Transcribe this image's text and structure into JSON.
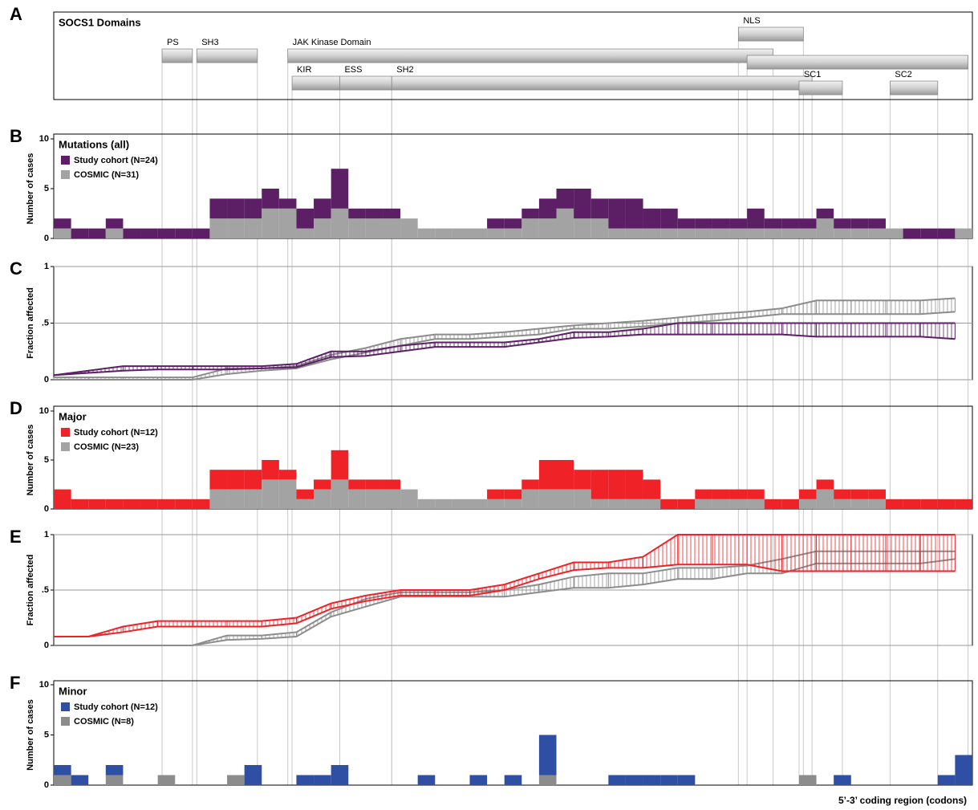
{
  "chart_data": [
    {
      "type": "domains",
      "panel": "A",
      "title": "SOCS1 Domains",
      "xlim": [
        0,
        212
      ],
      "domains": [
        {
          "label": "PS",
          "start": 25,
          "end": 32
        },
        {
          "label": "SH3",
          "start": 33,
          "end": 47
        },
        {
          "label": "JAK Kinase Domain",
          "start": 54,
          "end": 166
        },
        {
          "label": "NLS",
          "start": 158,
          "end": 173
        },
        {
          "label": null,
          "start": 160,
          "end": 211
        },
        {
          "label": "KIR",
          "start": 55,
          "end": 66
        },
        {
          "label": "ESS",
          "start": 66,
          "end": 78
        },
        {
          "label": "SH2",
          "start": 78,
          "end": 175
        },
        {
          "label": "SC1",
          "start": 172,
          "end": 182
        },
        {
          "label": "SC2",
          "start": 193,
          "end": 204
        }
      ]
    },
    {
      "type": "histogram",
      "panel": "B",
      "title": "Mutations (all)",
      "ylabel": "Number of cases",
      "grid": false,
      "xlim": [
        0,
        212
      ],
      "ylim": [
        0,
        10
      ],
      "yticks": [
        0,
        5,
        10
      ],
      "bins": [
        0,
        4,
        8,
        12,
        16,
        20,
        24,
        28,
        32,
        36,
        40,
        44,
        48,
        52,
        56,
        60,
        64,
        68,
        72,
        76,
        80,
        84,
        88,
        92,
        96,
        100,
        104,
        108,
        112,
        116,
        120,
        124,
        128,
        132,
        136,
        140,
        144,
        148,
        152,
        156,
        160,
        164,
        168,
        172,
        176,
        180,
        184,
        188,
        192,
        196,
        200,
        204,
        208,
        212
      ],
      "series": [
        {
          "name": "Study cohort (N=24)",
          "color": "#5c1f66",
          "values": [
            1,
            1,
            1,
            1,
            1,
            1,
            1,
            1,
            1,
            2,
            2,
            2,
            2,
            1,
            2,
            2,
            4,
            1,
            1,
            1,
            0,
            0,
            0,
            0,
            0,
            1,
            1,
            1,
            2,
            2,
            3,
            2,
            3,
            3,
            2,
            2,
            1,
            1,
            1,
            1,
            2,
            1,
            1,
            1,
            1,
            1,
            1,
            1,
            0,
            1,
            1,
            1,
            0
          ]
        },
        {
          "name": "COSMIC (N=31)",
          "color": "#a3a3a3",
          "values": [
            1,
            0,
            0,
            1,
            0,
            0,
            0,
            0,
            0,
            2,
            2,
            2,
            3,
            3,
            1,
            2,
            3,
            2,
            2,
            2,
            2,
            1,
            1,
            1,
            1,
            1,
            1,
            2,
            2,
            3,
            2,
            2,
            1,
            1,
            1,
            1,
            1,
            1,
            1,
            1,
            1,
            1,
            1,
            1,
            2,
            1,
            1,
            1,
            1,
            0,
            0,
            0,
            1
          ]
        }
      ]
    },
    {
      "type": "line",
      "panel": "C",
      "ylabel": "Fraction affected",
      "grid": true,
      "xlim": [
        0,
        212
      ],
      "ylim": [
        0,
        1
      ],
      "yticks": [
        0,
        {
          "value": 0.5,
          "label": ".5"
        },
        1
      ],
      "x": [
        0,
        8,
        16,
        24,
        32,
        40,
        48,
        56,
        64,
        72,
        80,
        88,
        96,
        104,
        112,
        120,
        128,
        136,
        144,
        152,
        160,
        168,
        176,
        184,
        192,
        200,
        208
      ],
      "series": [
        {
          "color": "#5c1f66",
          "values": [
            0.04,
            0.08,
            0.12,
            0.12,
            0.12,
            0.12,
            0.12,
            0.14,
            0.25,
            0.25,
            0.3,
            0.33,
            0.33,
            0.33,
            0.36,
            0.42,
            0.42,
            0.45,
            0.5,
            0.5,
            0.5,
            0.5,
            0.5,
            0.5,
            0.5,
            0.5,
            0.5
          ]
        },
        {
          "color": "#5c1f66",
          "values": [
            0.04,
            0.06,
            0.08,
            0.09,
            0.09,
            0.09,
            0.1,
            0.11,
            0.2,
            0.21,
            0.25,
            0.29,
            0.29,
            0.29,
            0.33,
            0.37,
            0.38,
            0.4,
            0.4,
            0.4,
            0.4,
            0.4,
            0.38,
            0.38,
            0.38,
            0.38,
            0.36
          ]
        },
        {
          "color": "#8c8c8c",
          "values": [
            0.02,
            0.02,
            0.02,
            0.02,
            0.02,
            0.1,
            0.1,
            0.12,
            0.22,
            0.28,
            0.36,
            0.4,
            0.4,
            0.42,
            0.45,
            0.48,
            0.5,
            0.52,
            0.55,
            0.58,
            0.6,
            0.63,
            0.7,
            0.7,
            0.7,
            0.7,
            0.72
          ]
        },
        {
          "color": "#8c8c8c",
          "values": [
            0,
            0,
            0,
            0,
            0,
            0.05,
            0.08,
            0.1,
            0.18,
            0.24,
            0.3,
            0.36,
            0.36,
            0.38,
            0.4,
            0.45,
            0.45,
            0.47,
            0.5,
            0.52,
            0.55,
            0.58,
            0.58,
            0.58,
            0.58,
            0.58,
            0.6
          ]
        }
      ]
    },
    {
      "type": "histogram",
      "panel": "D",
      "title": "Major",
      "ylabel": "Number of cases",
      "grid": false,
      "xlim": [
        0,
        212
      ],
      "ylim": [
        0,
        10
      ],
      "yticks": [
        0,
        5,
        10
      ],
      "bins": [
        0,
        4,
        8,
        12,
        16,
        20,
        24,
        28,
        32,
        36,
        40,
        44,
        48,
        52,
        56,
        60,
        64,
        68,
        72,
        76,
        80,
        84,
        88,
        92,
        96,
        100,
        104,
        108,
        112,
        116,
        120,
        124,
        128,
        132,
        136,
        140,
        144,
        148,
        152,
        156,
        160,
        164,
        168,
        172,
        176,
        180,
        184,
        188,
        192,
        196,
        200,
        204,
        208,
        212
      ],
      "series": [
        {
          "name": "Study cohort (N=12)",
          "color": "#ee2227",
          "values": [
            2,
            1,
            1,
            1,
            1,
            1,
            1,
            1,
            1,
            2,
            2,
            2,
            2,
            1,
            1,
            1,
            3,
            1,
            1,
            1,
            0,
            0,
            0,
            0,
            0,
            1,
            1,
            1,
            3,
            3,
            2,
            3,
            3,
            3,
            2,
            1,
            1,
            1,
            1,
            1,
            1,
            1,
            1,
            1,
            1,
            1,
            1,
            1,
            1,
            1,
            1,
            1,
            1
          ]
        },
        {
          "name": "COSMIC (N=23)",
          "color": "#a3a3a3",
          "values": [
            0,
            0,
            0,
            0,
            0,
            0,
            0,
            0,
            0,
            2,
            2,
            2,
            3,
            3,
            1,
            2,
            3,
            2,
            2,
            2,
            2,
            1,
            1,
            1,
            1,
            1,
            1,
            2,
            2,
            2,
            2,
            1,
            1,
            1,
            1,
            0,
            0,
            1,
            1,
            1,
            1,
            0,
            0,
            1,
            2,
            1,
            1,
            1,
            0,
            0,
            0,
            0,
            0
          ]
        }
      ]
    },
    {
      "type": "line",
      "panel": "E",
      "ylabel": "Fraction affected",
      "grid": true,
      "xlim": [
        0,
        212
      ],
      "ylim": [
        0,
        1
      ],
      "yticks": [
        0,
        {
          "value": 0.5,
          "label": ".5"
        },
        1
      ],
      "x": [
        0,
        8,
        16,
        24,
        32,
        40,
        48,
        56,
        64,
        72,
        80,
        88,
        96,
        104,
        112,
        120,
        128,
        136,
        144,
        152,
        160,
        168,
        176,
        184,
        192,
        200,
        208
      ],
      "series": [
        {
          "color": "#ee2227",
          "values": [
            0.08,
            0.08,
            0.17,
            0.22,
            0.22,
            0.22,
            0.22,
            0.25,
            0.38,
            0.45,
            0.5,
            0.5,
            0.5,
            0.55,
            0.65,
            0.75,
            0.75,
            0.8,
            1,
            1,
            1,
            1,
            1,
            1,
            1,
            1,
            1
          ]
        },
        {
          "color": "#ee2227",
          "values": [
            0.08,
            0.08,
            0.12,
            0.17,
            0.17,
            0.17,
            0.17,
            0.2,
            0.33,
            0.4,
            0.45,
            0.45,
            0.45,
            0.5,
            0.6,
            0.68,
            0.7,
            0.7,
            0.73,
            0.73,
            0.73,
            0.67,
            0.67,
            0.67,
            0.67,
            0.67,
            0.67
          ]
        },
        {
          "color": "#8c8c8c",
          "values": [
            0,
            0,
            0,
            0,
            0,
            0.09,
            0.09,
            0.12,
            0.3,
            0.42,
            0.48,
            0.48,
            0.48,
            0.5,
            0.55,
            0.62,
            0.65,
            0.65,
            0.7,
            0.7,
            0.72,
            0.78,
            0.85,
            0.85,
            0.85,
            0.85,
            0.85
          ]
        },
        {
          "color": "#8c8c8c",
          "values": [
            0,
            0,
            0,
            0,
            0,
            0.05,
            0.06,
            0.08,
            0.26,
            0.35,
            0.44,
            0.44,
            0.44,
            0.44,
            0.48,
            0.52,
            0.52,
            0.55,
            0.6,
            0.6,
            0.65,
            0.65,
            0.74,
            0.74,
            0.74,
            0.74,
            0.78
          ]
        }
      ]
    },
    {
      "type": "histogram",
      "panel": "F",
      "title": "Minor",
      "ylabel": "Number of cases",
      "xlabel": "5’-3’ coding region (codons)",
      "grid": false,
      "xlim": [
        0,
        212
      ],
      "ylim": [
        0,
        10
      ],
      "yticks": [
        0,
        5,
        10
      ],
      "bins": [
        0,
        4,
        8,
        12,
        16,
        20,
        24,
        28,
        32,
        36,
        40,
        44,
        48,
        52,
        56,
        60,
        64,
        68,
        72,
        76,
        80,
        84,
        88,
        92,
        96,
        100,
        104,
        108,
        112,
        116,
        120,
        124,
        128,
        132,
        136,
        140,
        144,
        148,
        152,
        156,
        160,
        164,
        168,
        172,
        176,
        180,
        184,
        188,
        192,
        196,
        200,
        204,
        208,
        212
      ],
      "series": [
        {
          "name": "Study cohort (N=12)",
          "color": "#2e4fa3",
          "values": [
            1,
            1,
            0,
            1,
            0,
            0,
            0,
            0,
            0,
            0,
            0,
            2,
            0,
            0,
            1,
            1,
            2,
            0,
            0,
            0,
            0,
            1,
            0,
            0,
            1,
            0,
            1,
            0,
            4,
            0,
            0,
            0,
            1,
            1,
            1,
            1,
            1,
            0,
            0,
            0,
            0,
            0,
            0,
            0,
            0,
            1,
            0,
            0,
            0,
            0,
            0,
            1,
            3
          ]
        },
        {
          "name": "COSMIC (N=8)",
          "color": "#8c8c8c",
          "values": [
            1,
            0,
            0,
            1,
            0,
            0,
            1,
            0,
            0,
            0,
            1,
            0,
            0,
            0,
            0,
            0,
            0,
            0,
            0,
            0,
            0,
            0,
            0,
            0,
            0,
            0,
            0,
            0,
            1,
            0,
            0,
            0,
            0,
            0,
            0,
            0,
            0,
            0,
            0,
            0,
            0,
            0,
            0,
            1,
            0,
            0,
            0,
            0,
            0,
            0,
            0,
            0,
            0
          ]
        }
      ]
    }
  ]
}
